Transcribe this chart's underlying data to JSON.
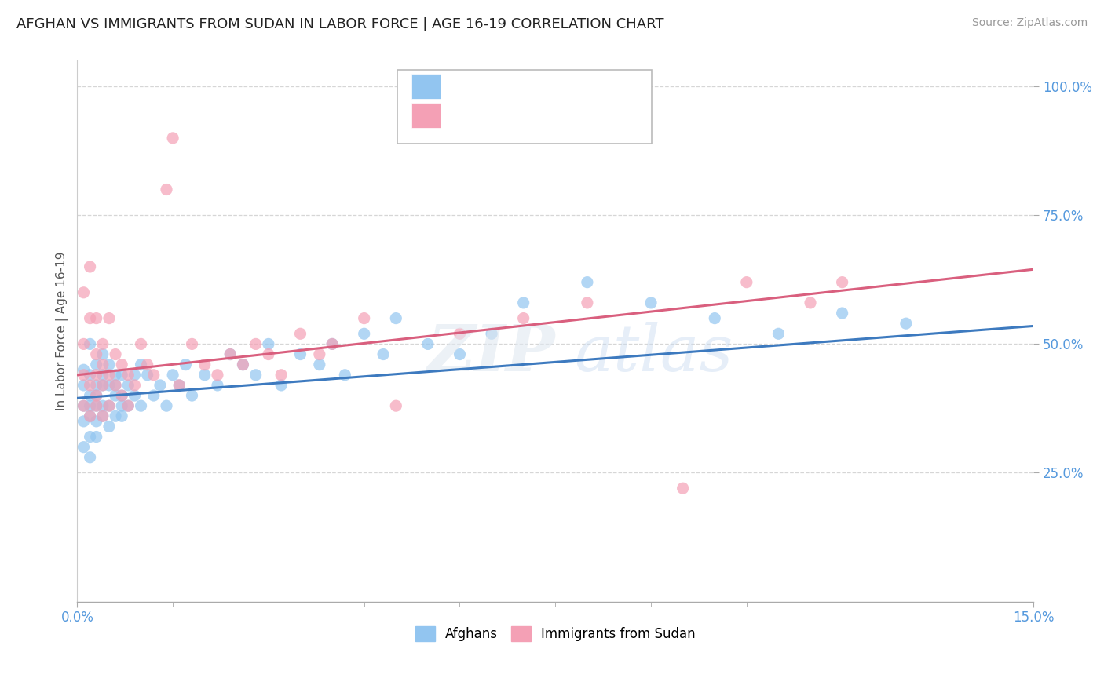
{
  "title": "AFGHAN VS IMMIGRANTS FROM SUDAN IN LABOR FORCE | AGE 16-19 CORRELATION CHART",
  "source": "Source: ZipAtlas.com",
  "ylabel": "In Labor Force | Age 16-19",
  "xlim": [
    0.0,
    0.15
  ],
  "ylim": [
    0.0,
    1.05
  ],
  "yticks": [
    0.25,
    0.5,
    0.75,
    1.0
  ],
  "ytick_labels": [
    "25.0%",
    "50.0%",
    "75.0%",
    "100.0%"
  ],
  "blue_color": "#92c5f0",
  "pink_color": "#f4a0b5",
  "blue_line_color": "#3d7abf",
  "pink_line_color": "#d95f7e",
  "tick_color": "#5599dd",
  "background_color": "#ffffff",
  "afghans_x": [
    0.001,
    0.001,
    0.001,
    0.001,
    0.001,
    0.002,
    0.002,
    0.002,
    0.002,
    0.002,
    0.002,
    0.002,
    0.003,
    0.003,
    0.003,
    0.003,
    0.003,
    0.003,
    0.004,
    0.004,
    0.004,
    0.004,
    0.004,
    0.005,
    0.005,
    0.005,
    0.005,
    0.006,
    0.006,
    0.006,
    0.006,
    0.007,
    0.007,
    0.007,
    0.007,
    0.008,
    0.008,
    0.009,
    0.009,
    0.01,
    0.01,
    0.011,
    0.012,
    0.013,
    0.014,
    0.015,
    0.016,
    0.017,
    0.018,
    0.02,
    0.022,
    0.024,
    0.026,
    0.028,
    0.03,
    0.032,
    0.035,
    0.038,
    0.04,
    0.042,
    0.045,
    0.048,
    0.05,
    0.055,
    0.06,
    0.065,
    0.07,
    0.08,
    0.09,
    0.1,
    0.11,
    0.12,
    0.13
  ],
  "afghans_y": [
    0.38,
    0.42,
    0.35,
    0.3,
    0.45,
    0.4,
    0.36,
    0.44,
    0.28,
    0.38,
    0.32,
    0.5,
    0.42,
    0.38,
    0.46,
    0.32,
    0.4,
    0.35,
    0.44,
    0.38,
    0.42,
    0.36,
    0.48,
    0.38,
    0.42,
    0.46,
    0.34,
    0.4,
    0.44,
    0.36,
    0.42,
    0.4,
    0.38,
    0.44,
    0.36,
    0.42,
    0.38,
    0.44,
    0.4,
    0.46,
    0.38,
    0.44,
    0.4,
    0.42,
    0.38,
    0.44,
    0.42,
    0.46,
    0.4,
    0.44,
    0.42,
    0.48,
    0.46,
    0.44,
    0.5,
    0.42,
    0.48,
    0.46,
    0.5,
    0.44,
    0.52,
    0.48,
    0.55,
    0.5,
    0.48,
    0.52,
    0.58,
    0.62,
    0.58,
    0.55,
    0.52,
    0.56,
    0.54
  ],
  "sudan_x": [
    0.001,
    0.001,
    0.001,
    0.001,
    0.002,
    0.002,
    0.002,
    0.002,
    0.003,
    0.003,
    0.003,
    0.003,
    0.003,
    0.004,
    0.004,
    0.004,
    0.004,
    0.005,
    0.005,
    0.005,
    0.006,
    0.006,
    0.007,
    0.007,
    0.008,
    0.008,
    0.009,
    0.01,
    0.011,
    0.012,
    0.014,
    0.015,
    0.016,
    0.018,
    0.02,
    0.022,
    0.024,
    0.026,
    0.028,
    0.03,
    0.032,
    0.035,
    0.038,
    0.04,
    0.045,
    0.05,
    0.06,
    0.07,
    0.08,
    0.095,
    0.105,
    0.115,
    0.12
  ],
  "sudan_y": [
    0.38,
    0.44,
    0.5,
    0.6,
    0.42,
    0.36,
    0.55,
    0.65,
    0.4,
    0.48,
    0.38,
    0.44,
    0.55,
    0.42,
    0.46,
    0.36,
    0.5,
    0.44,
    0.38,
    0.55,
    0.42,
    0.48,
    0.46,
    0.4,
    0.44,
    0.38,
    0.42,
    0.5,
    0.46,
    0.44,
    0.8,
    0.9,
    0.42,
    0.5,
    0.46,
    0.44,
    0.48,
    0.46,
    0.5,
    0.48,
    0.44,
    0.52,
    0.48,
    0.5,
    0.55,
    0.38,
    0.52,
    0.55,
    0.58,
    0.22,
    0.62,
    0.58,
    0.62
  ]
}
